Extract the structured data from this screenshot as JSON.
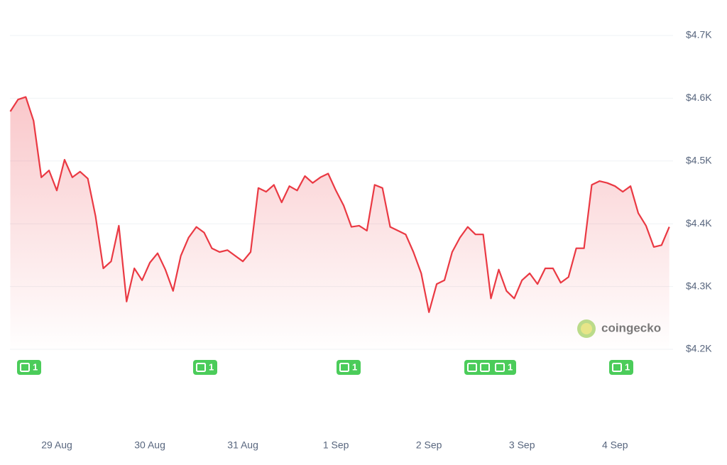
{
  "chart_data": {
    "type": "area-line",
    "categories": [
      null,
      null,
      null,
      null,
      null,
      null,
      "29 Aug",
      null,
      null,
      null,
      null,
      null,
      null,
      null,
      null,
      null,
      null,
      null,
      "30 Aug",
      null,
      null,
      null,
      null,
      null,
      null,
      null,
      null,
      null,
      null,
      null,
      "31 Aug",
      null,
      null,
      null,
      null,
      null,
      null,
      null,
      null,
      null,
      null,
      null,
      "1 Sep",
      null,
      null,
      null,
      null,
      null,
      null,
      null,
      null,
      null,
      null,
      null,
      "2 Sep",
      null,
      null,
      null,
      null,
      null,
      null,
      null,
      null,
      null,
      null,
      null,
      "3 Sep",
      null,
      null,
      null,
      null,
      null,
      null,
      null,
      null,
      null,
      null,
      null,
      "4 Sep",
      null,
      null,
      null,
      null,
      null,
      null,
      null
    ],
    "values": [
      4579,
      4598,
      4602,
      4564,
      4474,
      4485,
      4453,
      4502,
      4474,
      4483,
      4472,
      4412,
      4329,
      4340,
      4397,
      4276,
      4329,
      4310,
      4338,
      4353,
      4327,
      4293,
      4349,
      4378,
      4395,
      4386,
      4361,
      4355,
      4358,
      4349,
      4340,
      4355,
      4457,
      4451,
      4462,
      4434,
      4460,
      4453,
      4476,
      4465,
      4474,
      4480,
      4453,
      4429,
      4395,
      4397,
      4389,
      4462,
      4457,
      4395,
      4389,
      4383,
      4355,
      4321,
      4259,
      4304,
      4310,
      4355,
      4378,
      4395,
      4383,
      4383,
      4281,
      4327,
      4293,
      4281,
      4310,
      4321,
      4304,
      4329,
      4329,
      4306,
      4315,
      4361,
      4361,
      4462,
      4468,
      4465,
      4460,
      4451,
      4460,
      4417,
      4397,
      4363,
      4366,
      4395
    ],
    "color": "#ea3943",
    "ylim": [
      4200,
      4700
    ],
    "yticks": [
      {
        "value": 4200,
        "label": "$4.2K"
      },
      {
        "value": 4300,
        "label": "$4.3K"
      },
      {
        "value": 4400,
        "label": "$4.4K"
      },
      {
        "value": 4500,
        "label": "$4.5K"
      },
      {
        "value": 4600,
        "label": "$4.6K"
      },
      {
        "value": 4700,
        "label": "$4.7K"
      }
    ],
    "grid": true,
    "watermark": "coingecko"
  },
  "news_badges": [
    "1",
    "1",
    "1",
    "1",
    "1"
  ]
}
